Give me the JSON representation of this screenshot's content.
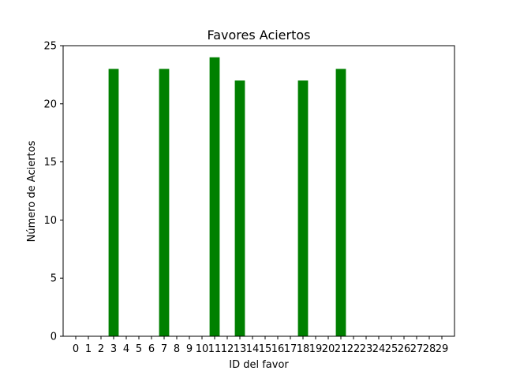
{
  "chart_data": {
    "type": "bar",
    "title": "Favores Aciertos",
    "xlabel": "ID del favor",
    "ylabel": "Número de Aciertos",
    "categories": [
      "0",
      "1",
      "2",
      "3",
      "4",
      "5",
      "6",
      "7",
      "8",
      "9",
      "10",
      "11",
      "12",
      "13",
      "14",
      "15",
      "16",
      "17",
      "18",
      "19",
      "20",
      "21",
      "22",
      "23",
      "24",
      "25",
      "26",
      "27",
      "28",
      "29"
    ],
    "values": [
      0,
      0,
      0,
      23,
      0,
      0,
      0,
      23,
      0,
      0,
      0,
      24,
      0,
      22,
      0,
      0,
      0,
      0,
      22,
      0,
      0,
      23,
      0,
      0,
      0,
      0,
      0,
      0,
      0,
      0
    ],
    "ylim": [
      0,
      25
    ],
    "yticks": [
      0,
      5,
      10,
      15,
      20,
      25
    ],
    "grid": false,
    "colors": {
      "bar": "#008000",
      "axis": "#000000",
      "background": "#ffffff"
    }
  }
}
